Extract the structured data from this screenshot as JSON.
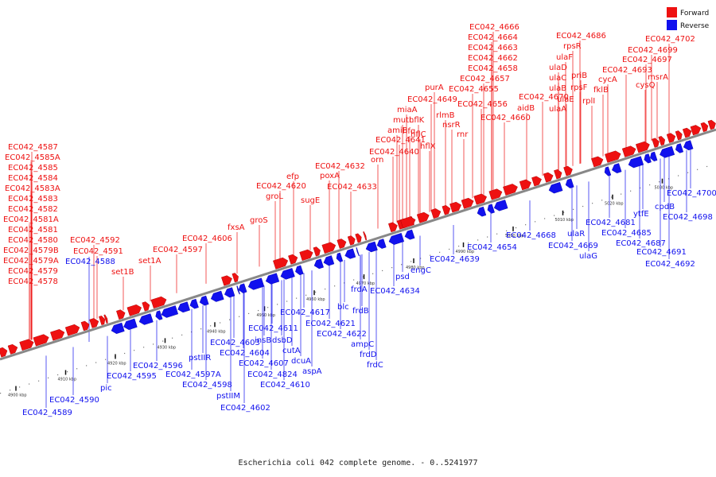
{
  "caption": "Escherichia coli 042 complete genome. - 0..5241977",
  "legend": [
    {
      "label": "Forward",
      "color": "#ee1111"
    },
    {
      "label": "Reverse",
      "color": "#1111ee"
    }
  ],
  "colors": {
    "forward": "#ee1111",
    "reverse": "#1111ee",
    "backbone": "#888888"
  },
  "ticks": [
    "4900 kbp",
    "4910 kbp",
    "4920 kbp",
    "4930 kbp",
    "4940 kbp",
    "4950 kbp",
    "4960 kbp",
    "4970 kbp",
    "4980 kbp",
    "4990 kbp",
    "5000 kbp",
    "5010 kbp",
    "5020 kbp",
    "5030 kbp"
  ],
  "forward_labels": [
    "EC042_4587",
    "EC042_4585A",
    "EC042_4585",
    "EC042_4584",
    "EC042_4583A",
    "EC042_4583",
    "EC042_4582",
    "EC042_4581A",
    "EC042_4581",
    "EC042_4580",
    "EC042_4579B",
    "EC042_4579A",
    "EC042_4579",
    "EC042_4578",
    "set1B",
    "EC042_4592",
    "EC042_4591",
    "set1A",
    "EC042_4597",
    "EC042_4606",
    "fxsA",
    "groS",
    "groL",
    "efp",
    "EC042_4620",
    "sugE",
    "poxA",
    "EC042_4632",
    "EC042_4633",
    "orn",
    "EC042_4640",
    "EC042_4641",
    "amiB",
    "mutL",
    "miaA",
    "hfq",
    "hflX",
    "hflK",
    "hflC",
    "rlmB",
    "nsrR",
    "rnr",
    "purA",
    "EC042_4649",
    "EC042_4655",
    "EC042_4656",
    "EC042_4657",
    "EC042_4658",
    "EC042_4660",
    "EC042_4662",
    "EC042_4663",
    "EC042_4664",
    "EC042_4666",
    "aidB",
    "EC042_4670",
    "ulaA",
    "ulaE",
    "ulaB",
    "ulaC",
    "ulaD",
    "ulaF",
    "rpsR",
    "EC042_4686",
    "priB",
    "rpsF",
    "rplI",
    "fklB",
    "cycA",
    "EC042_4693",
    "cysQ",
    "EC042_4697",
    "EC042_4699",
    "EC042_4702",
    "msrA"
  ],
  "reverse_labels": [
    "EC042_4588",
    "EC042_4589",
    "EC042_4590",
    "pic",
    "EC042_4595",
    "EC042_4596",
    "EC042_4597A",
    "EC042_4598",
    "pstIIR",
    "pstIIM",
    "EC042_4602",
    "EC042_4603",
    "EC042_4604",
    "insB",
    "EC042_4611",
    "EC042_4607",
    "EC042_4824",
    "dsbD",
    "cutA",
    "EC042_4610",
    "dcuA",
    "aspA",
    "EC042_4617",
    "EC042_4621",
    "EC042_4622",
    "blc",
    "frdA",
    "frdB",
    "ampC",
    "frdD",
    "frdC",
    "psd",
    "EC042_4634",
    "engC",
    "EC042_4639",
    "EC042_4654",
    "EC042_4668",
    "ulaR",
    "EC042_4669",
    "ulaG",
    "EC042_4681",
    "EC042_4685",
    "EC042_4687",
    "ytfE",
    "cpdB",
    "EC042_4691",
    "EC042_4692",
    "EC042_4698",
    "EC042_4700"
  ]
}
